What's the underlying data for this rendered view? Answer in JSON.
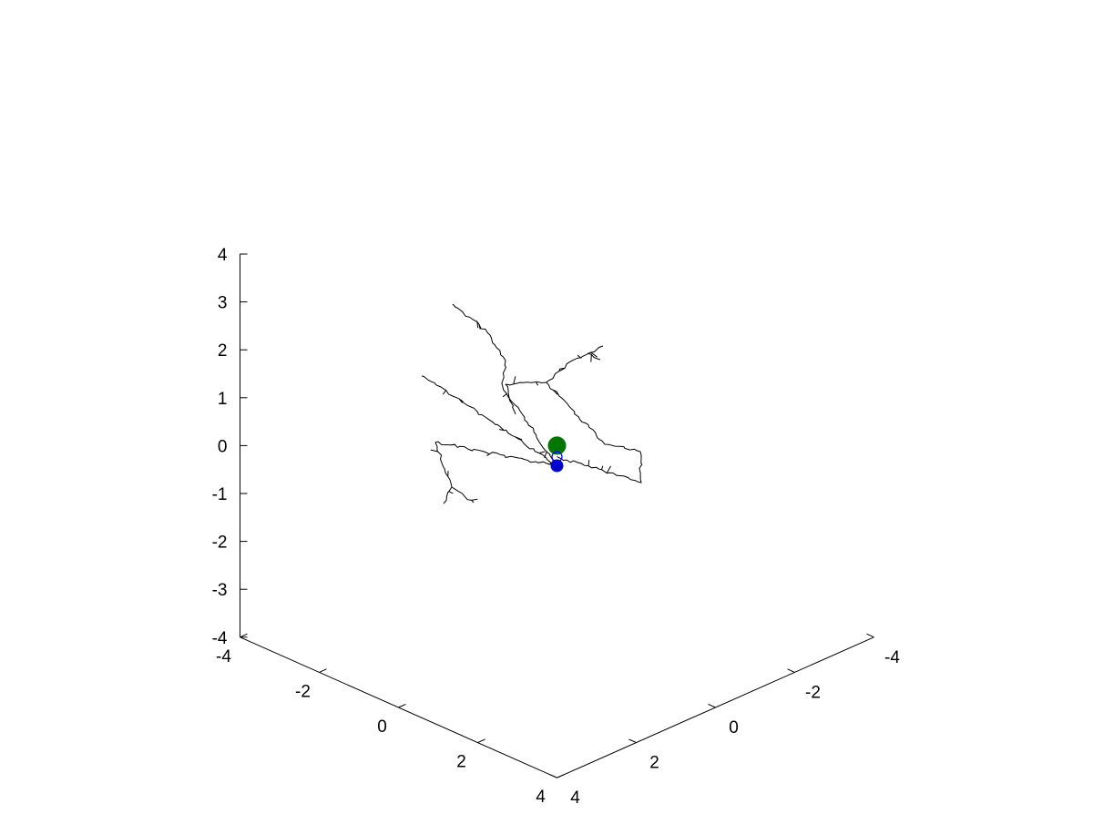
{
  "chart_data": {
    "type": "scatter",
    "projection": "3d",
    "title": "",
    "xlabel": "",
    "ylabel": "",
    "zlabel": "",
    "grid": false,
    "xlim": [
      -4,
      4
    ],
    "ylim": [
      -4,
      4
    ],
    "zlim": [
      -4,
      4
    ],
    "x_ticks": [
      "-4",
      "-2",
      "0",
      "2",
      "4"
    ],
    "y_ticks": [
      "-4",
      "-2",
      "0",
      "2",
      "4"
    ],
    "z_ticks": [
      "4",
      "3",
      "2",
      "1",
      "0",
      "-1",
      "-2",
      "-3",
      "-4"
    ],
    "colors": {
      "axis": "#000000",
      "branches": "#000000",
      "soma_marker": "#0000cc",
      "center_marker": "#007700",
      "open_marker": "#0000ff"
    },
    "markers": [
      {
        "name": "",
        "style": "filled-circle",
        "color": "#0000cc",
        "x": 1.05,
        "y": 1.05,
        "z": 0.35
      },
      {
        "name": "",
        "style": "filled-circle-large",
        "color": "#007700",
        "x": 0.0,
        "y": 0.0,
        "z": 0.0
      },
      {
        "name": "",
        "style": "open-circle",
        "color": "#0000ff",
        "x": -1.25,
        "y": -1.25,
        "z": -1.15
      }
    ]
  }
}
